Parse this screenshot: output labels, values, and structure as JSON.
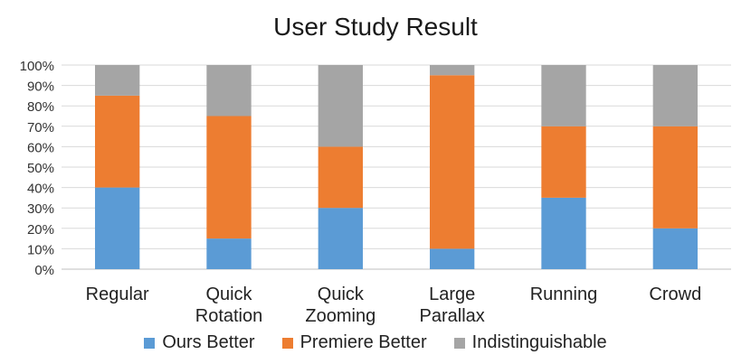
{
  "chart_data": {
    "type": "bar",
    "stacked": true,
    "percent": true,
    "title": "User Study Result",
    "xlabel": "",
    "ylabel": "",
    "ylim": [
      0,
      100
    ],
    "yticks": [
      "0%",
      "10%",
      "20%",
      "30%",
      "40%",
      "50%",
      "60%",
      "70%",
      "80%",
      "90%",
      "100%"
    ],
    "categories": [
      [
        "Regular"
      ],
      [
        "Quick",
        "Rotation"
      ],
      [
        "Quick",
        "Zooming"
      ],
      [
        "Large",
        "Parallax"
      ],
      [
        "Running"
      ],
      [
        "Crowd"
      ]
    ],
    "series": [
      {
        "name": "Ours Better",
        "color": "#5B9BD5",
        "values": [
          40,
          15,
          30,
          10,
          35,
          20
        ]
      },
      {
        "name": "Premiere Better",
        "color": "#ED7D31",
        "values": [
          45,
          60,
          30,
          85,
          35,
          50
        ]
      },
      {
        "name": "Indistinguishable",
        "color": "#A5A5A5",
        "values": [
          15,
          25,
          40,
          5,
          30,
          30
        ]
      }
    ],
    "grid": true,
    "legend_position": "bottom"
  }
}
